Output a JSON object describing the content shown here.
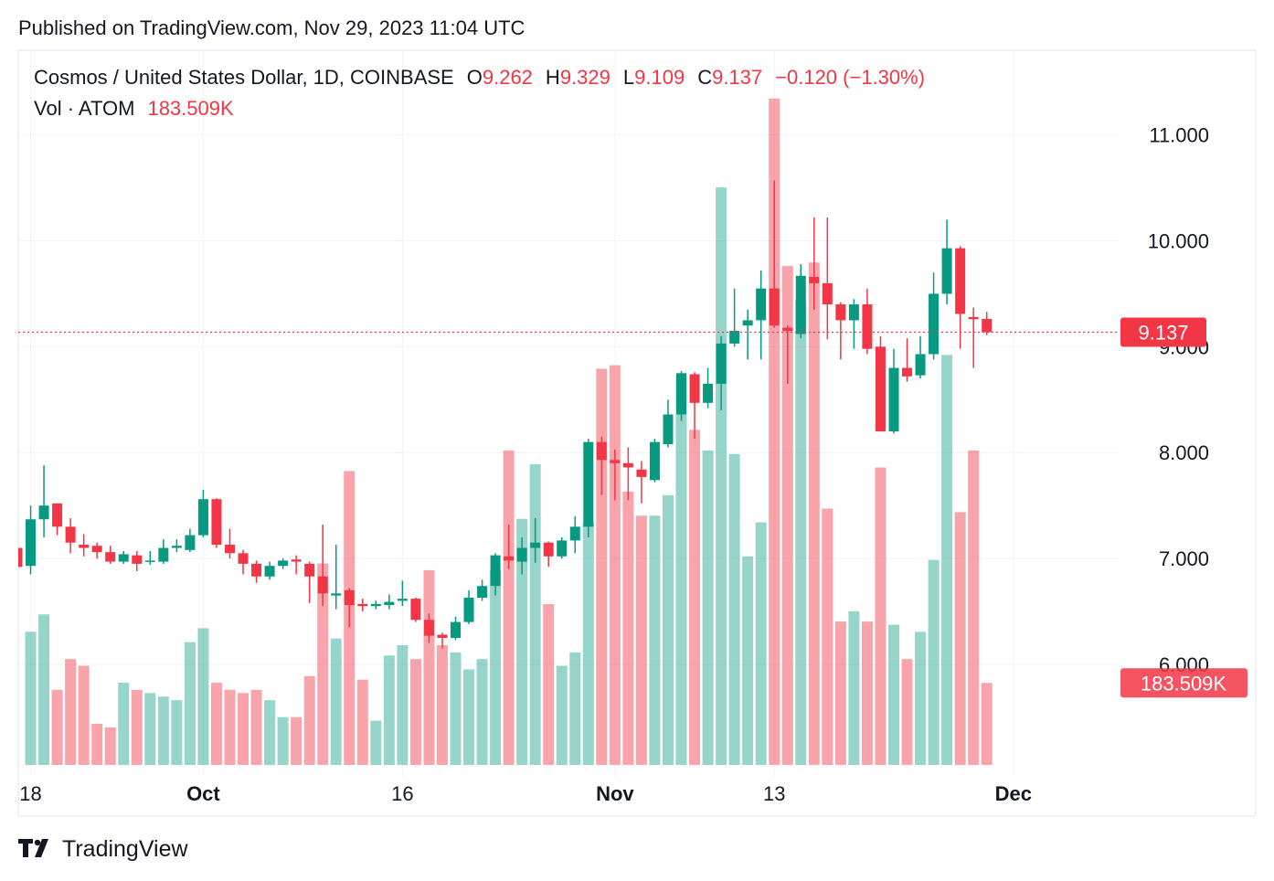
{
  "published": "Published on TradingView.com, Nov 29, 2023 11:04 UTC",
  "brand": "TradingView",
  "chart_data": {
    "type": "candlestick",
    "title": "Cosmos / United States Dollar, 1D, COINBASE",
    "legend_labels": [
      "O",
      "H",
      "L",
      "C"
    ],
    "change": "−0.120 (−1.30%)",
    "volume_title": "Vol · ATOM",
    "volume_label": "183.509K",
    "up_color": "#089981",
    "down_color": "#f23645",
    "grid": true,
    "x": [
      "2023-09-17",
      "2023-09-18",
      "2023-09-19",
      "2023-09-20",
      "2023-09-21",
      "2023-09-22",
      "2023-09-23",
      "2023-09-24",
      "2023-09-25",
      "2023-09-26",
      "2023-09-27",
      "2023-09-28",
      "2023-09-29",
      "2023-09-30",
      "2023-10-01",
      "2023-10-02",
      "2023-10-03",
      "2023-10-04",
      "2023-10-05",
      "2023-10-06",
      "2023-10-07",
      "2023-10-08",
      "2023-10-09",
      "2023-10-10",
      "2023-10-11",
      "2023-10-12",
      "2023-10-13",
      "2023-10-14",
      "2023-10-15",
      "2023-10-16",
      "2023-10-17",
      "2023-10-18",
      "2023-10-19",
      "2023-10-20",
      "2023-10-21",
      "2023-10-22",
      "2023-10-23",
      "2023-10-24",
      "2023-10-25",
      "2023-10-26",
      "2023-10-27",
      "2023-10-28",
      "2023-10-29",
      "2023-10-30",
      "2023-10-31",
      "2023-11-01",
      "2023-11-02",
      "2023-11-03",
      "2023-11-04",
      "2023-11-05",
      "2023-11-06",
      "2023-11-07",
      "2023-11-08",
      "2023-11-09",
      "2023-11-10",
      "2023-11-11",
      "2023-11-12",
      "2023-11-13",
      "2023-11-14",
      "2023-11-15",
      "2023-11-16",
      "2023-11-17",
      "2023-11-18",
      "2023-11-19",
      "2023-11-20",
      "2023-11-21",
      "2023-11-22",
      "2023-11-23",
      "2023-11-24",
      "2023-11-25",
      "2023-11-26",
      "2023-11-27",
      "2023-11-28",
      "2023-11-29"
    ],
    "open": [
      7.1,
      6.93,
      7.37,
      7.52,
      7.3,
      7.13,
      7.12,
      7.06,
      6.97,
      7.03,
      6.97,
      6.97,
      7.1,
      7.08,
      7.22,
      7.56,
      7.13,
      7.05,
      6.95,
      6.83,
      6.93,
      6.99,
      6.95,
      6.83,
      6.65,
      6.7,
      6.57,
      6.55,
      6.56,
      6.6,
      6.62,
      6.42,
      6.28,
      6.25,
      6.4,
      6.63,
      6.74,
      7.02,
      6.97,
      7.1,
      7.15,
      7.02,
      7.17,
      7.3,
      8.1,
      7.93,
      7.9,
      7.84,
      7.74,
      8.08,
      8.36,
      8.74,
      8.47,
      8.65,
      9.03,
      9.2,
      9.25,
      9.55,
      9.18,
      9.12,
      9.66,
      9.6,
      9.4,
      9.25,
      9.4,
      9.0,
      8.2,
      8.8,
      8.73,
      8.93,
      9.5,
      9.93,
      9.28,
      9.262
    ],
    "high": [
      7.12,
      7.5,
      7.88,
      7.52,
      7.38,
      7.23,
      7.15,
      7.12,
      7.07,
      7.07,
      7.07,
      7.18,
      7.18,
      7.28,
      7.65,
      7.57,
      7.28,
      7.08,
      6.98,
      6.97,
      7.0,
      7.03,
      6.97,
      7.32,
      7.13,
      6.72,
      6.62,
      6.6,
      6.66,
      6.79,
      6.63,
      6.48,
      6.3,
      6.45,
      6.7,
      6.8,
      7.05,
      7.32,
      7.2,
      7.38,
      7.16,
      7.2,
      7.4,
      8.13,
      8.15,
      8.03,
      8.05,
      7.92,
      8.13,
      8.5,
      8.77,
      8.76,
      8.8,
      9.1,
      9.55,
      9.35,
      9.72,
      10.57,
      9.2,
      9.78,
      10.22,
      10.22,
      9.42,
      9.45,
      9.55,
      9.1,
      8.98,
      9.08,
      9.1,
      9.7,
      10.2,
      9.95,
      9.37,
      9.329
    ],
    "low": [
      6.9,
      6.85,
      7.2,
      7.22,
      7.05,
      7.02,
      7.0,
      6.95,
      6.95,
      6.88,
      6.94,
      6.95,
      7.06,
      7.06,
      7.2,
      7.1,
      7.0,
      6.85,
      6.77,
      6.8,
      6.9,
      6.85,
      6.58,
      6.55,
      6.52,
      6.35,
      6.5,
      6.52,
      6.52,
      6.55,
      6.4,
      6.2,
      6.15,
      6.23,
      6.38,
      6.6,
      6.65,
      6.9,
      6.85,
      6.96,
      6.92,
      7.0,
      7.05,
      7.2,
      7.6,
      7.55,
      7.55,
      7.52,
      7.72,
      8.05,
      8.3,
      8.13,
      8.42,
      8.4,
      9.0,
      8.88,
      8.88,
      9.18,
      8.65,
      9.08,
      9.35,
      9.07,
      8.88,
      8.98,
      8.93,
      8.2,
      8.18,
      8.67,
      8.7,
      8.88,
      9.4,
      8.98,
      8.8,
      9.109
    ],
    "close": [
      6.92,
      7.37,
      7.5,
      7.3,
      7.15,
      7.1,
      7.06,
      6.97,
      7.04,
      6.95,
      6.98,
      7.1,
      7.12,
      7.22,
      7.56,
      7.13,
      7.05,
      6.95,
      6.83,
      6.93,
      6.98,
      6.97,
      6.83,
      6.67,
      6.67,
      6.56,
      6.55,
      6.57,
      6.59,
      6.62,
      6.42,
      6.27,
      6.25,
      6.4,
      6.63,
      6.74,
      7.03,
      6.98,
      7.1,
      7.15,
      7.02,
      7.17,
      7.3,
      8.1,
      7.93,
      7.9,
      7.86,
      7.77,
      8.1,
      8.36,
      8.75,
      8.47,
      8.65,
      9.03,
      9.15,
      9.25,
      9.55,
      9.2,
      9.15,
      9.67,
      9.6,
      9.4,
      9.25,
      9.4,
      8.98,
      8.2,
      8.8,
      8.72,
      8.93,
      9.5,
      9.93,
      9.31,
      9.26,
      9.137
    ],
    "volume": [
      null,
      298000,
      337000,
      168000,
      237000,
      222000,
      92000,
      84000,
      184000,
      168000,
      161000,
      153000,
      145000,
      275000,
      306000,
      184000,
      168000,
      161000,
      168000,
      145000,
      107000,
      107000,
      199000,
      451000,
      283000,
      658000,
      191000,
      99000,
      245000,
      268000,
      237000,
      436000,
      268000,
      252000,
      214000,
      237000,
      436000,
      704000,
      551000,
      673000,
      360000,
      222000,
      252000,
      543000,
      887000,
      895000,
      612000,
      558000,
      558000,
      604000,
      872000,
      750000,
      704000,
      1293000,
      696000,
      467000,
      543000,
      1492000,
      1117000,
      1040000,
      1125000,
      574000,
      321000,
      344000,
      321000,
      666000,
      314000,
      237000,
      298000,
      459000,
      918000,
      566000,
      704000,
      183509
    ],
    "xlim": [
      "2023-09-17",
      "2023-12-09"
    ],
    "xticks": [
      {
        "value": "2023-09-18",
        "label": "18"
      },
      {
        "value": "2023-10-01",
        "label": "Oct"
      },
      {
        "value": "2023-10-16",
        "label": "16"
      },
      {
        "value": "2023-11-01",
        "label": "Nov"
      },
      {
        "value": "2023-11-13",
        "label": "13"
      },
      {
        "value": "2023-12-01",
        "label": "Dec"
      }
    ],
    "ylim": [
      5.05,
      11.8
    ],
    "yticks": [
      {
        "value": 6,
        "label": "6.000"
      },
      {
        "value": 7,
        "label": "7.000"
      },
      {
        "value": 8,
        "label": "8.000"
      },
      {
        "value": 9,
        "label": "9.000"
      },
      {
        "value": 10,
        "label": "10.000"
      },
      {
        "value": 11,
        "label": "11.000"
      }
    ],
    "volume_lim": [
      0,
      1600000
    ]
  }
}
